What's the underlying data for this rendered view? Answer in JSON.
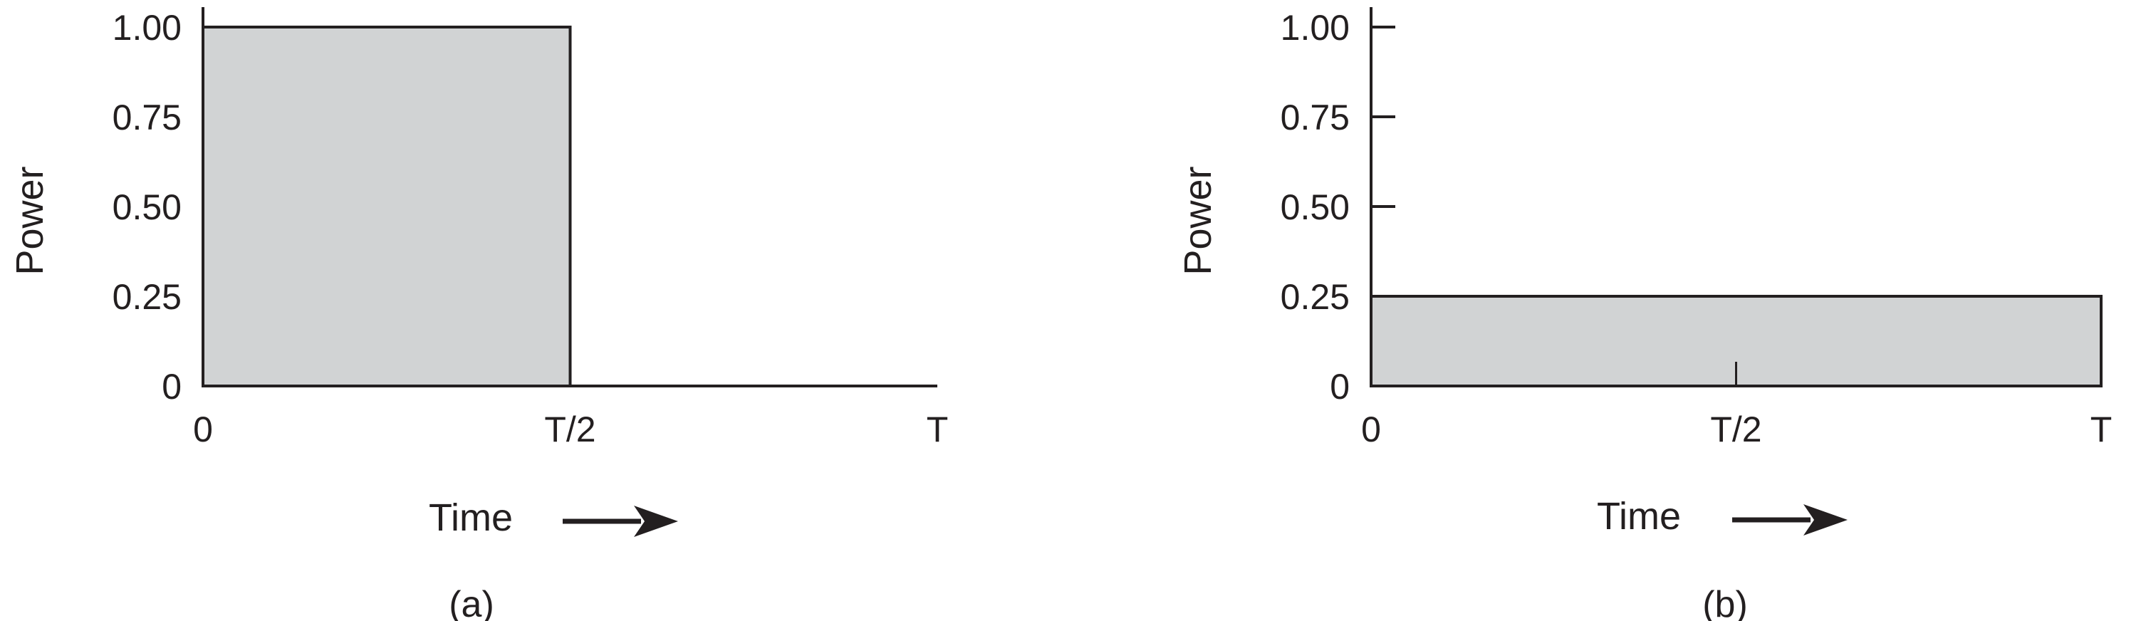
{
  "colors": {
    "fill": "#d1d3d4",
    "ink": "#231f20"
  },
  "chart_data": [
    {
      "type": "area",
      "caption": "(a)",
      "xlabel": "Time",
      "ylabel": "Power",
      "x_ticks": [
        "0",
        "T/2",
        "T"
      ],
      "y_ticks": [
        "0",
        "0.25",
        "0.50",
        "0.75",
        "1.00"
      ],
      "xlim": [
        0,
        1
      ],
      "ylim": [
        0,
        1
      ],
      "grid": false,
      "series": [
        {
          "x": [
            0,
            0,
            0.5,
            0.5,
            1
          ],
          "y": [
            0,
            1,
            1,
            0,
            0
          ]
        }
      ]
    },
    {
      "type": "area",
      "caption": "(b)",
      "xlabel": "Time",
      "ylabel": "Power",
      "x_ticks": [
        "0",
        "T/2",
        "T"
      ],
      "y_ticks": [
        "0",
        "0.25",
        "0.50",
        "0.75",
        "1.00"
      ],
      "xlim": [
        0,
        1
      ],
      "ylim": [
        0,
        1
      ],
      "grid": false,
      "series": [
        {
          "x": [
            0,
            0,
            1,
            1
          ],
          "y": [
            0,
            0.25,
            0.25,
            0
          ]
        }
      ]
    }
  ]
}
